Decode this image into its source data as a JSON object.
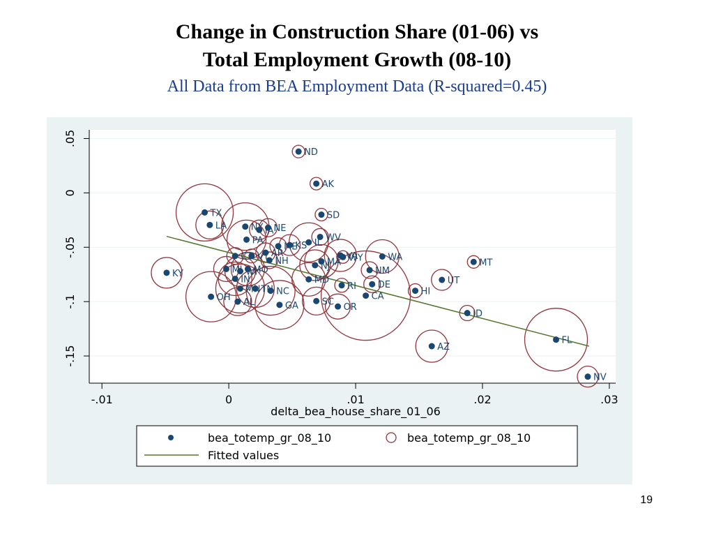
{
  "slide": {
    "title_line1": "Change in Construction Share (01-06) vs",
    "title_line2": "Total Employment Growth (08-10)",
    "subtitle": "All Data from BEA Employment Data (R-squared=0.45)",
    "page_number": "19"
  },
  "colors": {
    "panel_bg": "#eaf2f3",
    "plot_bg": "#ffffff",
    "marker": "#1a476f",
    "circle": "#90353b",
    "fit_line": "#55752f",
    "grid": "#eaf2f3"
  },
  "chart_data": {
    "type": "scatter",
    "xlabel": "delta_bea_house_share_01_06",
    "ylabel": "",
    "xlim": [
      -0.011,
      0.0305
    ],
    "ylim": [
      -0.175,
      0.058
    ],
    "x_ticks": [
      -0.01,
      0,
      0.01,
      0.02,
      0.03
    ],
    "x_tick_labels": [
      "-.01",
      "0",
      ".01",
      ".02",
      ".03"
    ],
    "y_ticks": [
      0.05,
      0,
      -0.05,
      -0.1,
      -0.15
    ],
    "y_tick_labels": [
      ".05",
      "0",
      "-.05",
      "-.1",
      "-.15"
    ],
    "grid": "horizontal",
    "legend": {
      "position": "bottom",
      "entries": [
        "bea_totemp_gr_08_10",
        "bea_totemp_gr_08_10",
        "Fitted values"
      ]
    },
    "fitted_line": {
      "x": [
        -0.0049,
        0.0284
      ],
      "y": [
        -0.04,
        -0.141
      ]
    },
    "points": [
      {
        "label": "ND",
        "x": 0.0055,
        "y": 0.038,
        "r": 9
      },
      {
        "label": "AK",
        "x": 0.0069,
        "y": 0.0085,
        "r": 9
      },
      {
        "label": "SD",
        "x": 0.0073,
        "y": -0.02,
        "r": 9
      },
      {
        "label": "TX",
        "x": -0.0019,
        "y": -0.018,
        "r": 41
      },
      {
        "label": "LA",
        "x": -0.0015,
        "y": -0.0295,
        "r": 20
      },
      {
        "label": "NY",
        "x": 0.0013,
        "y": -0.031,
        "r": 34
      },
      {
        "label": "NE",
        "x": 0.0031,
        "y": -0.032,
        "r": 13
      },
      {
        "label": "IA",
        "x": 0.0024,
        "y": -0.034,
        "r": 14
      },
      {
        "label": "PA",
        "x": 0.0014,
        "y": -0.043,
        "r": 28
      },
      {
        "label": "WV",
        "x": 0.0072,
        "y": -0.0405,
        "r": 12
      },
      {
        "label": "ME",
        "x": 0.0039,
        "y": -0.049,
        "r": 12
      },
      {
        "label": "KS",
        "x": 0.0048,
        "y": -0.048,
        "r": 15
      },
      {
        "label": "IL",
        "x": 0.0063,
        "y": -0.0455,
        "r": 28
      },
      {
        "label": "AR",
        "x": 0.0029,
        "y": -0.055,
        "r": 14
      },
      {
        "label": "VT",
        "x": 0.0018,
        "y": -0.058,
        "r": 10
      },
      {
        "label": "NH",
        "x": 0.0032,
        "y": -0.062,
        "r": 12
      },
      {
        "label": "CT",
        "x": 0.0005,
        "y": -0.058,
        "r": 12
      },
      {
        "label": "VA",
        "x": 0.0088,
        "y": -0.0575,
        "r": 23
      },
      {
        "label": "WY",
        "x": 0.009,
        "y": -0.059,
        "r": 9
      },
      {
        "label": "NJ",
        "x": 0.0068,
        "y": -0.0665,
        "r": 22
      },
      {
        "label": "MA",
        "x": 0.0073,
        "y": -0.063,
        "r": 24
      },
      {
        "label": "WA",
        "x": 0.0121,
        "y": -0.0585,
        "r": 24
      },
      {
        "label": "MO",
        "x": 0.0015,
        "y": -0.07,
        "r": 24
      },
      {
        "label": "WI",
        "x": 0.0009,
        "y": -0.072,
        "r": 22
      },
      {
        "label": "MI",
        "x": -0.0002,
        "y": -0.07,
        "r": 18
      },
      {
        "label": "IN",
        "x": 0.0005,
        "y": -0.079,
        "r": 24
      },
      {
        "label": "KY",
        "x": -0.0049,
        "y": -0.0735,
        "r": 22
      },
      {
        "label": "NM",
        "x": 0.0111,
        "y": -0.071,
        "r": 12
      },
      {
        "label": "MT",
        "x": 0.0193,
        "y": -0.0635,
        "r": 9
      },
      {
        "label": "MD",
        "x": 0.0063,
        "y": -0.0795,
        "r": 24
      },
      {
        "label": "UT",
        "x": 0.0168,
        "y": -0.08,
        "r": 15
      },
      {
        "label": "DE",
        "x": 0.0113,
        "y": -0.084,
        "r": 12
      },
      {
        "label": "RI",
        "x": 0.0089,
        "y": -0.085,
        "r": 10
      },
      {
        "label": "HI",
        "x": 0.0147,
        "y": -0.09,
        "r": 10
      },
      {
        "label": "MN",
        "x": 0.0009,
        "y": -0.088,
        "r": 35
      },
      {
        "label": "TN",
        "x": 0.0021,
        "y": -0.088,
        "r": 27
      },
      {
        "label": "NC",
        "x": 0.0033,
        "y": -0.09,
        "r": 35
      },
      {
        "label": "OH",
        "x": -0.0014,
        "y": -0.0955,
        "r": 36
      },
      {
        "label": "AL",
        "x": 0.0007,
        "y": -0.1,
        "r": 20
      },
      {
        "label": "GA",
        "x": 0.004,
        "y": -0.103,
        "r": 35
      },
      {
        "label": "SC",
        "x": 0.0069,
        "y": -0.0995,
        "r": 20
      },
      {
        "label": "OR",
        "x": 0.0086,
        "y": -0.1045,
        "r": 18
      },
      {
        "label": "CA",
        "x": 0.0108,
        "y": -0.0945,
        "r": 64
      },
      {
        "label": "ID",
        "x": 0.0188,
        "y": -0.1105,
        "r": 11
      },
      {
        "label": "FL",
        "x": 0.0258,
        "y": -0.135,
        "r": 45
      },
      {
        "label": "AZ",
        "x": 0.016,
        "y": -0.141,
        "r": 23
      },
      {
        "label": "NV",
        "x": 0.0283,
        "y": -0.169,
        "r": 15
      }
    ]
  }
}
